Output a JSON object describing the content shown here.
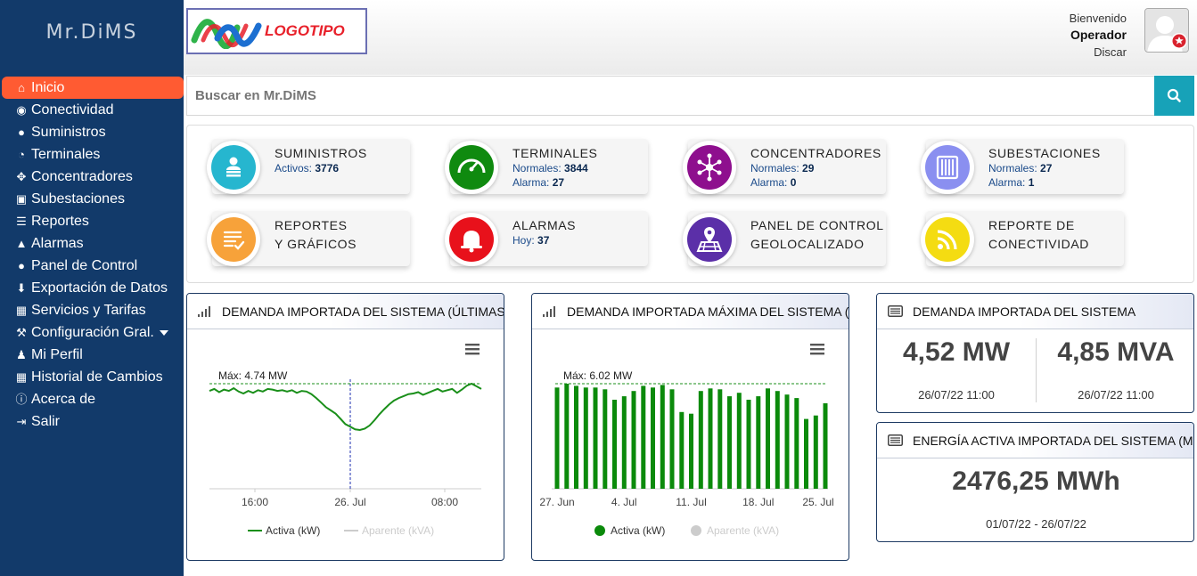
{
  "brand": {
    "title": "Mr.DiMS"
  },
  "sidebar": {
    "items": [
      {
        "label": "Inicio",
        "icon": "home-icon",
        "active": true
      },
      {
        "label": "Conectividad",
        "icon": "rss-icon"
      },
      {
        "label": "Suministros",
        "icon": "user-icon"
      },
      {
        "label": "Terminales",
        "icon": "dashboard-icon"
      },
      {
        "label": "Concentradores",
        "icon": "arrows-icon"
      },
      {
        "label": "Subestaciones",
        "icon": "window-icon"
      },
      {
        "label": "Reportes",
        "icon": "list-icon"
      },
      {
        "label": "Alarmas",
        "icon": "warning-icon"
      },
      {
        "label": "Panel de Control",
        "icon": "map-marker-icon"
      },
      {
        "label": "Exportación de Datos",
        "icon": "download-icon"
      },
      {
        "label": "Servicios y Tarifas",
        "icon": "table-icon"
      },
      {
        "label": "Configuración Gral.",
        "icon": "wrench-icon",
        "dropdown": true
      },
      {
        "label": "Mi Perfil",
        "icon": "person-icon"
      },
      {
        "label": "Historial de Cambios",
        "icon": "calendar-icon"
      },
      {
        "label": "Acerca de",
        "icon": "info-icon"
      },
      {
        "label": "Salir",
        "icon": "sign-out-icon"
      }
    ]
  },
  "header": {
    "logo_text": "LOGOTIPO",
    "welcome": "Bienvenido",
    "user": "Operador",
    "logout": "Discar"
  },
  "search": {
    "placeholder": "Buscar en Mr.DiMS"
  },
  "cards": [
    {
      "title": [
        "SUMINISTROS"
      ],
      "icon": "users-list-icon",
      "color": "#26b6cf",
      "lines": [
        {
          "label": "Activos: ",
          "value": "3776"
        }
      ]
    },
    {
      "title": [
        "TERMINALES"
      ],
      "icon": "gauge-icon",
      "color": "#0f8a0f",
      "lines": [
        {
          "label": "Normales: ",
          "value": "3844"
        },
        {
          "label": "Alarma: ",
          "value": "27"
        }
      ]
    },
    {
      "title": [
        "CONCENTRADORES"
      ],
      "icon": "network-hub-icon",
      "color": "#8e0f8e",
      "lines": [
        {
          "label": "Normales: ",
          "value": "29"
        },
        {
          "label": "Alarma: ",
          "value": "0"
        }
      ]
    },
    {
      "title": [
        "SUBESTACIONES"
      ],
      "icon": "substation-icon",
      "color": "#8a8ff0",
      "lines": [
        {
          "label": "Normales: ",
          "value": "27"
        },
        {
          "label": "Alarma: ",
          "value": "1"
        }
      ]
    },
    {
      "title": [
        "REPORTES",
        "Y GRÁFICOS"
      ],
      "icon": "report-checklist-icon",
      "color": "#f7a23a",
      "lines": []
    },
    {
      "title": [
        "ALARMAS"
      ],
      "icon": "bell-icon",
      "color": "#e8111b",
      "lines": [
        {
          "label": "Hoy: ",
          "value": "37"
        }
      ]
    },
    {
      "title": [
        "PANEL DE CONTROL",
        "GEOLOCALIZADO"
      ],
      "icon": "geo-map-icon",
      "color": "#5b2fa8",
      "lines": []
    },
    {
      "title": [
        "REPORTE DE",
        "CONECTIVIDAD"
      ],
      "icon": "connectivity-rss-icon",
      "color": "#f4dc12",
      "lines": []
    }
  ],
  "panels": {
    "demand_24h": {
      "title": "DEMANDA IMPORTADA DEL SISTEMA (ÚLTIMAS"
    },
    "demand_max": {
      "title": "DEMANDA IMPORTADA MÁXIMA DEL SISTEMA ("
    },
    "demand_now": {
      "title": "DEMANDA IMPORTADA DEL SISTEMA",
      "active": "4,52 MW",
      "apparent": "4,85 MVA",
      "active_time": "26/07/22 11:00",
      "apparent_time": "26/07/22 11:00"
    },
    "energy_month": {
      "title": "ENERGÍA ACTIVA IMPORTADA DEL SISTEMA (MES",
      "value": "2476,25 MWh",
      "range": "01/07/22 - 26/07/22"
    }
  },
  "chart_data": [
    {
      "type": "line",
      "max_label": "Máx: 4.74 MW",
      "x_ticks": [
        "16:00",
        "26. Jul",
        "08:00"
      ],
      "legend": [
        "Activa (kW)",
        "Aparente (kVA)"
      ],
      "series": [
        {
          "name": "Activa (kW)",
          "color": "#1a8f1a",
          "values": [
            4.63,
            4.66,
            4.61,
            4.65,
            4.63,
            4.67,
            4.62,
            4.59,
            4.63,
            4.6,
            4.64,
            4.62,
            4.66,
            4.65,
            4.63,
            4.64,
            4.62,
            4.64,
            4.6,
            4.63,
            4.62,
            4.58,
            4.52,
            4.45,
            4.38,
            4.33,
            4.28,
            4.2,
            4.12,
            4.08,
            4.04,
            4.03,
            4.05,
            4.1,
            4.18,
            4.27,
            4.35,
            4.42,
            4.48,
            4.52,
            4.55,
            4.58,
            4.59,
            4.61,
            4.57,
            4.6,
            4.63,
            4.66,
            4.62,
            4.64,
            4.66,
            4.6,
            4.65,
            4.71,
            4.74,
            4.7,
            4.66
          ]
        },
        {
          "name": "Aparente (kVA)",
          "color": "#cccccc",
          "values": []
        }
      ]
    },
    {
      "type": "bar",
      "max_label": "Máx: 6.02 MW",
      "x_ticks": [
        "27. Jun",
        "4. Jul",
        "11. Jul",
        "18. Jul",
        "25. Jul"
      ],
      "legend": [
        "Activa (kW)",
        "Aparente (kVA)"
      ],
      "series": [
        {
          "name": "Activa (kW)",
          "color": "#0b8a0b",
          "values": [
            5.8,
            6.02,
            5.9,
            5.8,
            5.8,
            5.7,
            5.1,
            5.3,
            5.6,
            5.9,
            5.8,
            5.95,
            5.7,
            4.4,
            4.3,
            5.6,
            5.75,
            5.7,
            5.3,
            5.5,
            5.1,
            5.3,
            5.75,
            5.6,
            5.4,
            5.2,
            4.0,
            4.2,
            4.9
          ]
        },
        {
          "name": "Aparente (kVA)",
          "color": "#cccccc",
          "values": []
        }
      ]
    }
  ]
}
